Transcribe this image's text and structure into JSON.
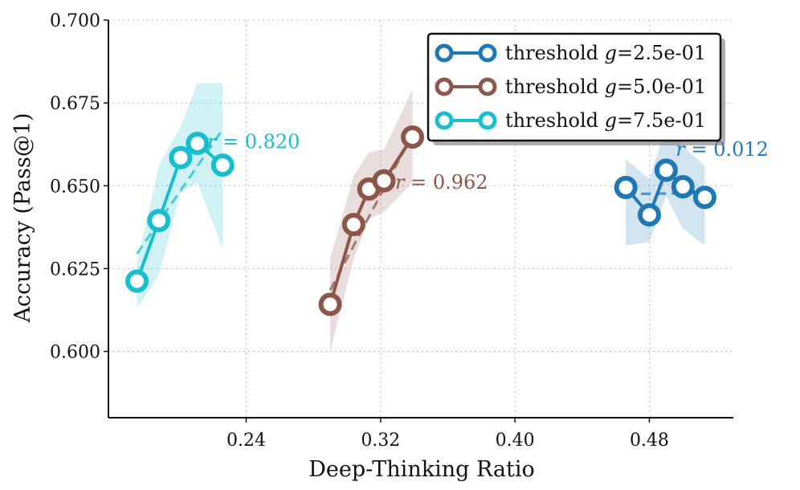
{
  "chart_data": {
    "type": "line",
    "title": "",
    "xlabel": "Deep-Thinking Ratio",
    "ylabel": "Accuracy (Pass@1)",
    "xlim": [
      0.158,
      0.53
    ],
    "ylim": [
      0.58,
      0.7
    ],
    "xticks": [
      0.24,
      0.32,
      0.4,
      0.48
    ],
    "xtick_labels": [
      "0.24",
      "0.32",
      "0.40",
      "0.48"
    ],
    "yticks": [
      0.6,
      0.625,
      0.65,
      0.675,
      0.7
    ],
    "ytick_labels": [
      "0.600",
      "0.625",
      "0.650",
      "0.675",
      "0.700"
    ],
    "grid": true,
    "legend_position": "top-right",
    "series": [
      {
        "name": "threshold g=2.5e-01",
        "legend_prefix": "threshold ",
        "legend_var": "g",
        "legend_value": "=2.5e-01",
        "color": "#1f77b4",
        "x": [
          0.466,
          0.48,
          0.49,
          0.5,
          0.513
        ],
        "y": [
          0.6495,
          0.6412,
          0.6547,
          0.6497,
          0.6465
        ],
        "band_x": [
          0.466,
          0.48,
          0.49,
          0.5,
          0.513
        ],
        "band_lower": [
          0.632,
          0.633,
          0.647,
          0.637,
          0.632
        ],
        "band_upper": [
          0.658,
          0.652,
          0.668,
          0.662,
          0.656
        ],
        "fit": [
          [
            0.466,
            0.6475
          ],
          [
            0.513,
            0.6478
          ]
        ],
        "annotation_var": "r",
        "annotation_value": " = 0.012"
      },
      {
        "name": "threshold g=5.0e-01",
        "legend_prefix": "threshold ",
        "legend_var": "g",
        "legend_value": "=5.0e-01",
        "color": "#8c564b",
        "x": [
          0.29,
          0.304,
          0.313,
          0.322,
          0.339
        ],
        "y": [
          0.6142,
          0.6383,
          0.649,
          0.6515,
          0.6647
        ],
        "band_x": [
          0.29,
          0.304,
          0.313,
          0.322,
          0.339
        ],
        "band_lower": [
          0.6,
          0.628,
          0.64,
          0.642,
          0.651
        ],
        "band_upper": [
          0.628,
          0.653,
          0.66,
          0.661,
          0.679
        ],
        "fit": [
          [
            0.29,
            0.6185
          ],
          [
            0.339,
            0.6655
          ]
        ],
        "annotation_var": "r",
        "annotation_value": " = 0.962"
      },
      {
        "name": "threshold g=7.5e-01",
        "legend_prefix": "threshold ",
        "legend_var": "g",
        "legend_value": "=7.5e-01",
        "color": "#17becf",
        "x": [
          0.175,
          0.188,
          0.201,
          0.211,
          0.226
        ],
        "y": [
          0.6212,
          0.6395,
          0.6585,
          0.6628,
          0.6562
        ],
        "band_x": [
          0.175,
          0.188,
          0.201,
          0.211,
          0.226
        ],
        "band_lower": [
          0.613,
          0.623,
          0.648,
          0.651,
          0.631
        ],
        "band_upper": [
          0.627,
          0.656,
          0.668,
          0.681,
          0.681
        ],
        "fit": [
          [
            0.175,
            0.6295
          ],
          [
            0.226,
            0.667
          ]
        ],
        "annotation_var": "r",
        "annotation_value": " = 0.820"
      }
    ]
  }
}
